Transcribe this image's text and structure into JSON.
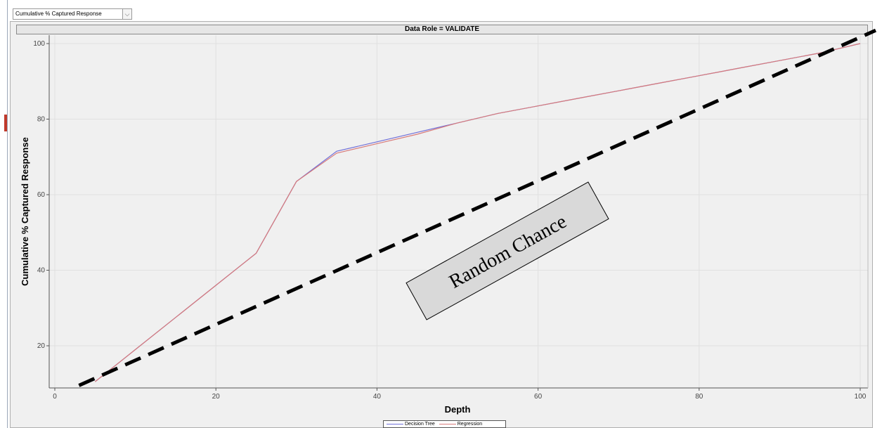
{
  "toolbar": {
    "statistic_select": "Cumulative % Captured Response",
    "dropdown_glyph": "⌵"
  },
  "plot": {
    "header": "Data Role = VALIDATE"
  },
  "annotation": {
    "label": "Random Chance"
  },
  "chart_data": {
    "type": "line",
    "xlabel": "Depth",
    "ylabel": "Cumulative % Captured Response",
    "xlim": [
      0,
      100
    ],
    "ylim": [
      8,
      104
    ],
    "xticks": [
      0,
      20,
      40,
      60,
      80,
      100
    ],
    "yticks": [
      20,
      40,
      60,
      80,
      100
    ],
    "grid": true,
    "legend_position": "bottom",
    "series": [
      {
        "name": "Decision Tree",
        "color": "#6f6fd8",
        "x": [
          5,
          10,
          15,
          20,
          25,
          30,
          35,
          40,
          45,
          50,
          55,
          60,
          65,
          70,
          75,
          80,
          85,
          90,
          95,
          100
        ],
        "y": [
          10.5,
          19,
          27.5,
          36,
          44.5,
          63.5,
          71.5,
          74,
          76.5,
          79,
          81.5,
          83.5,
          85.5,
          87.5,
          89.5,
          91.5,
          93.5,
          95.5,
          97.5,
          100
        ]
      },
      {
        "name": "Regression",
        "color": "#d87b7b",
        "x": [
          5,
          10,
          15,
          20,
          25,
          30,
          35,
          40,
          45,
          50,
          55,
          60,
          65,
          70,
          75,
          80,
          85,
          90,
          95,
          100
        ],
        "y": [
          10.5,
          19,
          27.5,
          36,
          44.5,
          63.5,
          71,
          73.5,
          76,
          79,
          81.5,
          83.5,
          85.5,
          87.5,
          89.5,
          91.5,
          93.5,
          95.5,
          97.5,
          100
        ]
      }
    ],
    "reference_line": {
      "label": "Random Chance",
      "style": "dashed",
      "color": "#000000",
      "x": [
        3,
        100
      ],
      "y": [
        9.5,
        103.5
      ]
    }
  }
}
